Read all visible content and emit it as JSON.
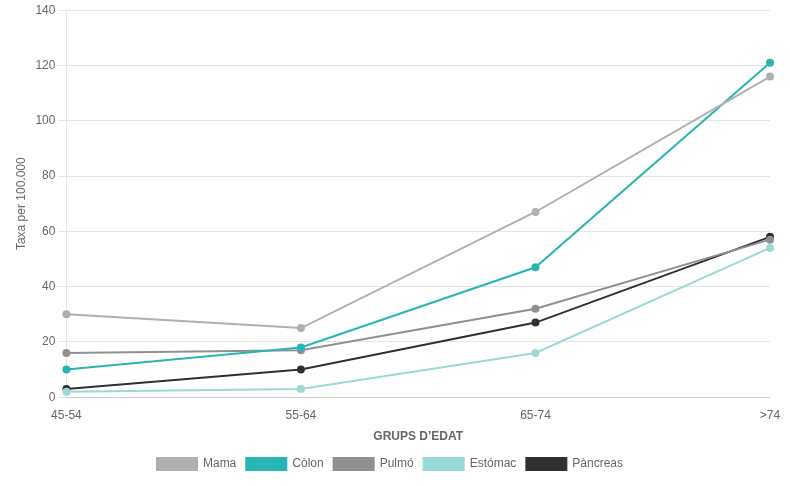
{
  "chart_data": {
    "type": "line",
    "xlabel": "GRUPS D’EDAT",
    "ylabel": "Taxa per 100.000",
    "categories": [
      "45-54",
      "55-64",
      "65-74",
      ">74"
    ],
    "series": [
      {
        "name": "Mama",
        "color": "#b0b0b0",
        "values": [
          30,
          25,
          67,
          116
        ]
      },
      {
        "name": "Còlon",
        "color": "#2ab5b5",
        "values": [
          10,
          18,
          47,
          121
        ]
      },
      {
        "name": "Pulmó",
        "color": "#909090",
        "values": [
          16,
          17,
          32,
          57
        ]
      },
      {
        "name": "Estómac",
        "color": "#9adad5",
        "values": [
          2,
          3,
          16,
          54
        ]
      },
      {
        "name": "Pàncreas",
        "color": "#303030",
        "values": [
          3,
          10,
          27,
          58
        ]
      }
    ],
    "ylim": [
      0,
      140
    ],
    "yticks": [
      0,
      20,
      40,
      60,
      80,
      100,
      120,
      140
    ],
    "grid": true,
    "legend": "bottom"
  }
}
